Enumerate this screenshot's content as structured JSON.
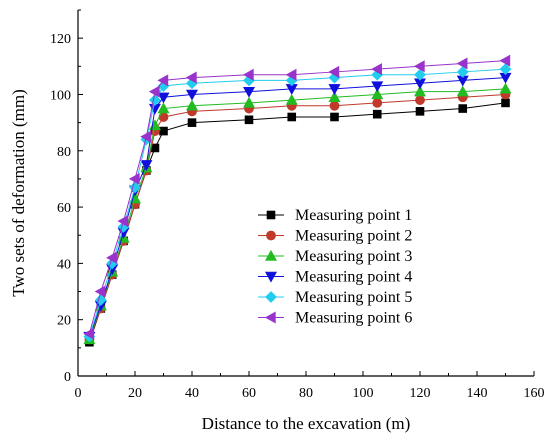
{
  "chart_data": {
    "type": "line",
    "xlabel": "Distance to the excavation (m)",
    "ylabel": "Two sets of deformation (mm)",
    "xlim": [
      0,
      160
    ],
    "ylim": [
      0,
      130
    ],
    "xticks": [
      0,
      20,
      40,
      60,
      80,
      100,
      120,
      140,
      160
    ],
    "yticks": [
      0,
      20,
      40,
      60,
      80,
      100,
      120
    ],
    "grid": false,
    "legend_position": "center-right",
    "x": [
      4,
      8,
      12,
      16,
      20,
      24,
      27,
      30,
      40,
      60,
      75,
      90,
      105,
      120,
      135,
      150
    ],
    "series": [
      {
        "name": "Measuring point 1",
        "marker": "square",
        "color": "#000000",
        "values": [
          12,
          24,
          36,
          48,
          61,
          73,
          81,
          87,
          90,
          91,
          92,
          92,
          93,
          94,
          95,
          97
        ]
      },
      {
        "name": "Measuring point 2",
        "marker": "circle",
        "color": "#c0392b",
        "values": [
          13,
          24,
          36,
          48,
          61,
          73,
          87,
          92,
          94,
          95,
          96,
          96,
          97,
          98,
          99,
          100
        ]
      },
      {
        "name": "Measuring point 3",
        "marker": "triangle-up",
        "color": "#22bb22",
        "values": [
          13,
          25,
          37,
          49,
          63,
          74,
          89,
          95,
          96,
          97,
          98,
          99,
          100,
          101,
          101,
          102
        ]
      },
      {
        "name": "Measuring point 4",
        "marker": "triangle-down",
        "color": "#1010dd",
        "values": [
          14,
          25,
          38,
          51,
          66,
          75,
          95,
          99,
          100,
          101,
          102,
          102,
          103,
          104,
          105,
          106
        ]
      },
      {
        "name": "Measuring point 5",
        "marker": "diamond",
        "color": "#22ccee",
        "values": [
          14,
          27,
          40,
          53,
          67,
          84,
          98,
          103,
          104,
          105,
          105,
          106,
          107,
          107,
          108,
          109
        ]
      },
      {
        "name": "Measuring point 6",
        "marker": "triangle-left",
        "color": "#9933cc",
        "values": [
          15,
          30,
          42,
          55,
          70,
          85,
          101,
          105,
          106,
          107,
          107,
          108,
          109,
          110,
          111,
          112
        ]
      }
    ]
  }
}
